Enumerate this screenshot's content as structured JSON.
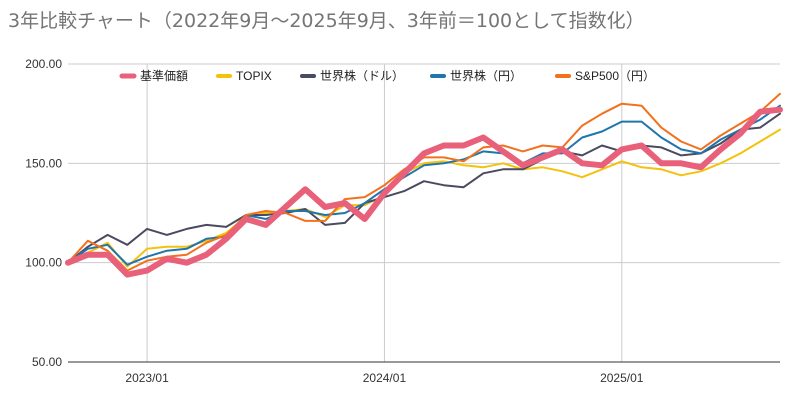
{
  "chart_data": {
    "type": "line",
    "title": "3年比較チャート（2022年9月〜2025年9月、3年前＝100として指数化）",
    "x": [
      "2022/09",
      "2022/10",
      "2022/11",
      "2022/12",
      "2023/01",
      "2023/02",
      "2023/03",
      "2023/04",
      "2023/05",
      "2023/06",
      "2023/07",
      "2023/08",
      "2023/09",
      "2023/10",
      "2023/11",
      "2023/12",
      "2024/01",
      "2024/02",
      "2024/03",
      "2024/04",
      "2024/05",
      "2024/06",
      "2024/07",
      "2024/08",
      "2024/09",
      "2024/10",
      "2024/11",
      "2024/12",
      "2025/01",
      "2025/02",
      "2025/03",
      "2025/04",
      "2025/05",
      "2025/06",
      "2025/07",
      "2025/08",
      "2025/09"
    ],
    "x_tick_labels": [
      "2023/01",
      "2024/01",
      "2025/01"
    ],
    "x_tick_positions": [
      "2023/01",
      "2024/01",
      "2025/01"
    ],
    "ylim": [
      50,
      200
    ],
    "y_ticks": [
      "50.00",
      "100.00",
      "150.00",
      "200.00"
    ],
    "y_tick_values": [
      50,
      100,
      150,
      200
    ],
    "grid": true,
    "legend_position": "top",
    "series": [
      {
        "name": "基準価額",
        "color": "#e8607a",
        "values": [
          100,
          104,
          104,
          94,
          96,
          102,
          100,
          104,
          112,
          122,
          119,
          128,
          137,
          128,
          130,
          122,
          135,
          145,
          155,
          159,
          159,
          163,
          156,
          149,
          153,
          157,
          150,
          149,
          157,
          159,
          150,
          150,
          148,
          157,
          165,
          176,
          177
        ]
      },
      {
        "name": "TOPIX",
        "color": "#f4c20d",
        "values": [
          100,
          105,
          110,
          98,
          107,
          108,
          108,
          111,
          115,
          123,
          125,
          126,
          127,
          123,
          129,
          129,
          134,
          145,
          150,
          151,
          149,
          148,
          150,
          147,
          148,
          146,
          143,
          147,
          151,
          148,
          147,
          144,
          146,
          150,
          155,
          161,
          167
        ]
      },
      {
        "name": "世界株（ドル）",
        "color": "#4a4a60",
        "values": [
          100,
          108,
          114,
          109,
          117,
          114,
          117,
          119,
          118,
          124,
          124,
          125,
          127,
          119,
          120,
          130,
          133,
          136,
          141,
          139,
          138,
          145,
          147,
          147,
          152,
          156,
          154,
          159,
          156,
          159,
          158,
          154,
          155,
          160,
          167,
          168,
          175
        ]
      },
      {
        "name": "世界株（円）",
        "color": "#1f75ad",
        "values": [
          100,
          107,
          109,
          99,
          103,
          106,
          107,
          112,
          113,
          124,
          122,
          126,
          126,
          124,
          125,
          130,
          137,
          143,
          149,
          150,
          152,
          156,
          155,
          150,
          155,
          155,
          163,
          166,
          171,
          171,
          163,
          157,
          155,
          162,
          167,
          172,
          179
        ]
      },
      {
        "name": "S&P500（円）",
        "color": "#f2711c",
        "values": [
          100,
          111,
          106,
          96,
          101,
          103,
          104,
          110,
          114,
          124,
          126,
          125,
          121,
          121,
          132,
          133,
          139,
          147,
          153,
          153,
          151,
          158,
          159,
          156,
          159,
          158,
          169,
          175,
          180,
          179,
          168,
          161,
          157,
          164,
          170,
          176,
          185
        ]
      }
    ]
  }
}
